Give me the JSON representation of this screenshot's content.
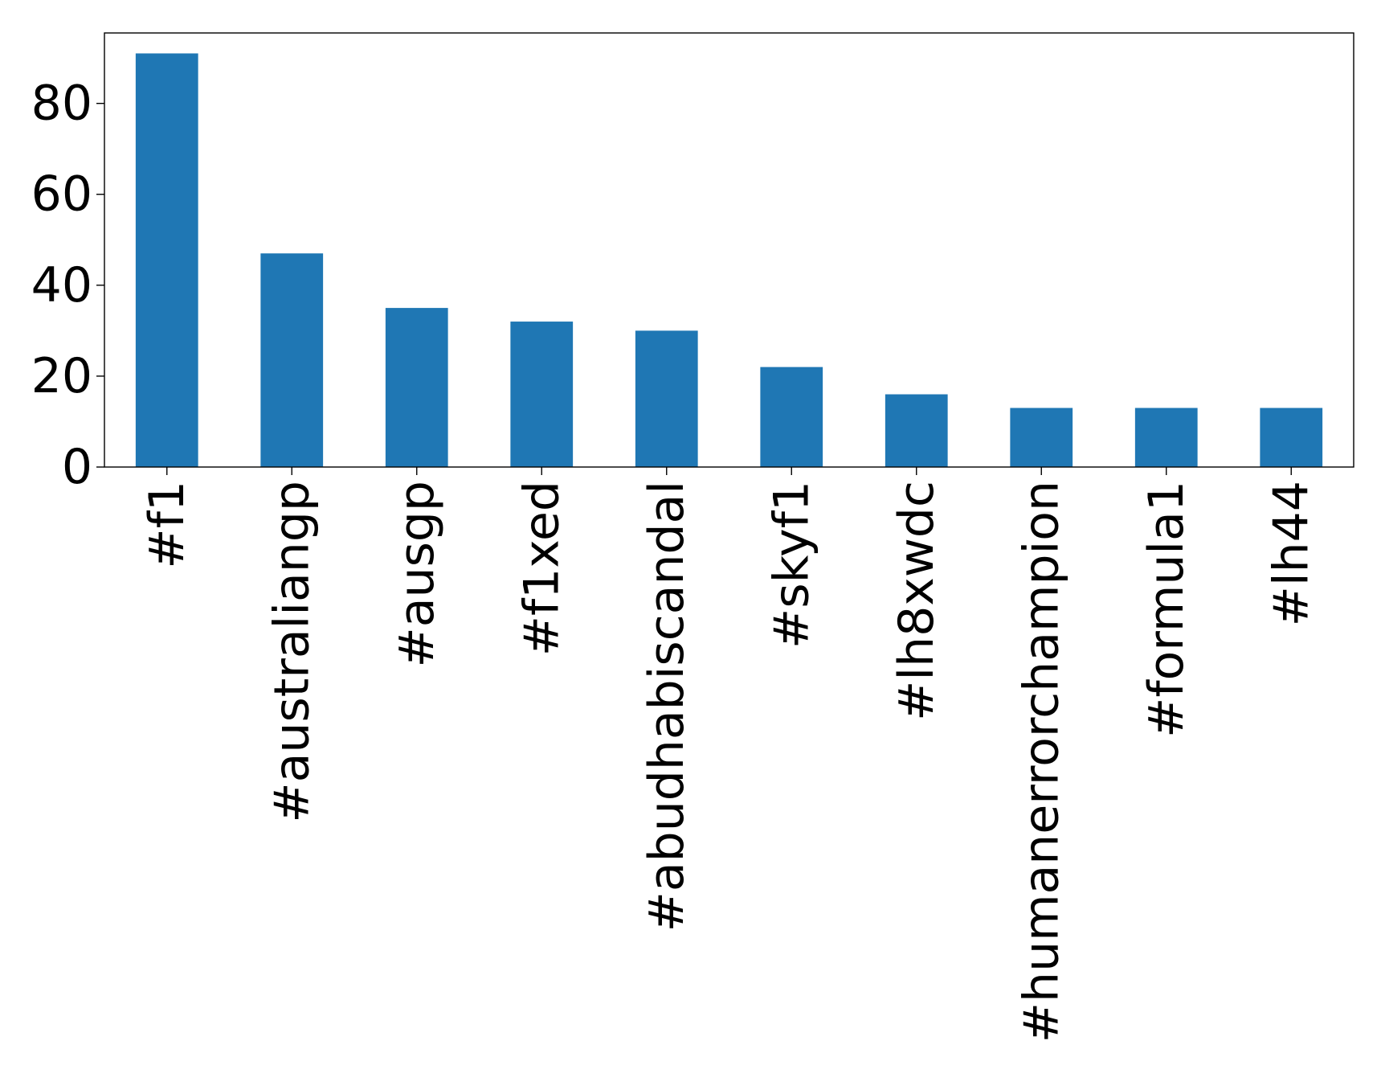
{
  "chart_data": {
    "type": "bar",
    "title": "",
    "xlabel": "",
    "ylabel": "",
    "categories": [
      "#f1",
      "#australiangp",
      "#ausgp",
      "#f1xed",
      "#abudhabiscandal",
      "#skyf1",
      "#lh8xwdc",
      "#humanerrorchampion",
      "#formula1",
      "#lh44"
    ],
    "values": [
      91,
      47,
      35,
      32,
      30,
      22,
      16,
      13,
      13,
      13
    ],
    "ylim": [
      0,
      95.5
    ],
    "yticks": [
      0,
      20,
      40,
      60,
      80
    ],
    "ytick_labels": [
      "0",
      "20",
      "40",
      "60",
      "80"
    ],
    "bar_color": "#1f77b4",
    "grid": false,
    "legend": "none"
  }
}
